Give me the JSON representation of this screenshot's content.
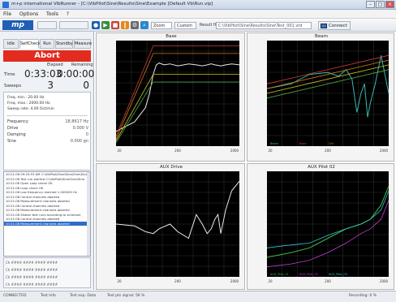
{
  "window": {
    "title": "m+p international VibRunner - [C:\\VibPilot\\Sine\\Results\\Sine\\Example  [Default Vb\\Run.vip]"
  },
  "menu": [
    "File",
    "Options",
    "Tools",
    "?"
  ],
  "toolbar": {
    "logo": "mp",
    "btn1": "",
    "btn2": "",
    "dropdown1": "Zoom",
    "dropdown2": "Custom",
    "result_file_label": "Result file:",
    "result_file_value": "C:\\VibPilot\\Sine\\Results\\Sine\\Test_001.vrd",
    "connect_label": "Connect"
  },
  "panel": {
    "tabs": [
      "Idle",
      "SelfCheck",
      "Run",
      "Standby",
      "Measure"
    ],
    "abort_label": "Abort",
    "col_elapsed": "Elapsed",
    "col_remaining": "Remaining",
    "time_label": "Time",
    "time_elapsed": "0:33:03",
    "time_remaining": "0:00:00",
    "sweeps_label": "Sweeps",
    "sweeps_elapsed": "3",
    "sweeps_remaining": "0",
    "info_rows": [
      "Freq. min.:        20.00  Hz",
      "Freq. max.:      2000.00  Hz",
      "Sweep rate:         4.00  Oct/min"
    ],
    "kv": [
      {
        "k": "Frequency",
        "v": "18.8617 Hz"
      },
      {
        "k": "Drive",
        "v": "0.000 V"
      },
      {
        "k": "Damping",
        "v": "0"
      },
      {
        "k": "Sine",
        "v": "0.000 gn"
      }
    ],
    "log": [
      "10:21:08 09:20:53 AM C:\\VibPilot\\Sine\\Sine\\Sine\\Sine",
      "10:21:08 Test run started C:\\VibPilot\\Sine\\Sine\\Sine",
      "10:21:08 Open Loop check OK",
      "10:21:08 Loop check OK",
      "10:21:08 Low frequency reached  1.000000 Hz",
      "10:21:08 Control channels aborted",
      "10:21:08 Measurement channels aborted",
      "10:21:08 Control channels aborted",
      "10:21:08 Measurement channels aborted",
      "10:21:08 Shaker test runs according to schedule",
      "10:21:08 Control channels aborted",
      "10:21:08 Measurement channels aborted"
    ],
    "ch_rows": [
      "Ch  ####  ####  ####  ####",
      "Ch  ####  ####  ####  ####",
      "Ch  ####  ####  ####  ####",
      "Ch  ####  ####  ####  ####"
    ]
  },
  "statusbar": [
    "CONNECTED",
    "Test Info",
    "Test exp. Data",
    "Test pts signal: 56 %",
    "",
    "Recording: 0 %"
  ],
  "colors": {
    "abort": "#e32b1e",
    "plot_bg": "#000000",
    "accent": "#1f5fb5"
  },
  "chart_data": [
    {
      "type": "line",
      "title": "Base",
      "x_scale": "log",
      "xlim": [
        20,
        2000
      ],
      "series": [
        {
          "values_x": [
            20,
            40,
            60,
            70,
            80,
            90,
            100,
            120,
            150,
            200,
            250,
            300,
            400,
            500,
            600,
            700,
            800,
            1000,
            1200,
            1500,
            2000
          ],
          "values_y": [
            0.1,
            0.2,
            0.35,
            0.5,
            0.7,
            0.8,
            0.82,
            0.8,
            0.81,
            0.79,
            0.8,
            0.81,
            0.8,
            0.79,
            0.8,
            0.81,
            0.8,
            0.79,
            0.8,
            0.81,
            0.8
          ]
        },
        {
          "values_x": [
            20,
            80,
            2000
          ],
          "values_y": [
            0.05,
            1.0,
            1.0
          ]
        },
        {
          "values_x": [
            20,
            80,
            2000
          ],
          "values_y": [
            0.02,
            0.92,
            0.92
          ]
        },
        {
          "values_x": [
            20,
            80,
            2000
          ],
          "values_y": [
            0.0,
            0.7,
            0.7
          ]
        },
        {
          "values_x": [
            20,
            80,
            2000
          ],
          "values_y": [
            -0.02,
            0.62,
            0.62
          ]
        }
      ]
    },
    {
      "type": "line",
      "title": "Beam",
      "x_scale": "log",
      "xlim": [
        20,
        2000
      ],
      "legend": [
        "Beam",
        "Base",
        "Ctrl"
      ],
      "series": [
        {
          "values_x": [
            20,
            50,
            100,
            200,
            300,
            400,
            500,
            600,
            700,
            800,
            900,
            1000,
            1200,
            1500,
            2000
          ],
          "values_y": [
            0.55,
            0.6,
            0.7,
            0.72,
            0.68,
            0.75,
            0.65,
            0.3,
            0.5,
            0.6,
            0.25,
            0.4,
            0.6,
            0.9,
            0.5
          ]
        },
        {
          "values_x": [
            20,
            2000
          ],
          "values_y": [
            0.6,
            0.9
          ]
        },
        {
          "values_x": [
            20,
            2000
          ],
          "values_y": [
            0.55,
            0.85
          ]
        },
        {
          "values_x": [
            20,
            2000
          ],
          "values_y": [
            0.5,
            0.8
          ]
        },
        {
          "values_x": [
            20,
            2000
          ],
          "values_y": [
            0.45,
            0.75
          ]
        }
      ]
    },
    {
      "type": "line",
      "title": "AUX Drive",
      "x_scale": "log",
      "xlim": [
        20,
        2000
      ],
      "series": [
        {
          "values_x": [
            20,
            40,
            60,
            80,
            100,
            150,
            200,
            300,
            400,
            500,
            600,
            700,
            800,
            900,
            1000,
            1200,
            1500,
            2000
          ],
          "values_y": [
            0.5,
            0.48,
            0.42,
            0.4,
            0.45,
            0.5,
            0.42,
            0.35,
            0.6,
            0.5,
            0.4,
            0.45,
            0.55,
            0.6,
            0.4,
            0.65,
            0.85,
            0.95
          ]
        }
      ]
    },
    {
      "type": "line",
      "title": "AUX Pilot 02",
      "x_scale": "log",
      "xlim": [
        20,
        2000
      ],
      "legend": [
        "AUX_Pilot_01",
        "AUX_Pilot_02",
        "AUX_Pilot_03"
      ],
      "series": [
        {
          "name": "AUX_Pilot_01",
          "values_x": [
            20,
            50,
            100,
            200,
            400,
            700,
            1000,
            1500,
            2000
          ],
          "values_y": [
            0.15,
            0.2,
            0.25,
            0.35,
            0.45,
            0.5,
            0.55,
            0.7,
            0.9
          ]
        },
        {
          "name": "AUX_Pilot_02",
          "values_x": [
            20,
            50,
            100,
            200,
            400,
            700,
            1000,
            1500,
            2000
          ],
          "values_y": [
            0.05,
            0.08,
            0.12,
            0.2,
            0.3,
            0.4,
            0.45,
            0.55,
            0.75
          ]
        },
        {
          "name": "AUX_Pilot_03",
          "values_x": [
            20,
            50,
            100,
            200,
            400,
            700,
            1000,
            1500,
            2000
          ],
          "values_y": [
            0.25,
            0.28,
            0.3,
            0.38,
            0.45,
            0.5,
            0.55,
            0.65,
            0.85
          ]
        }
      ]
    }
  ]
}
